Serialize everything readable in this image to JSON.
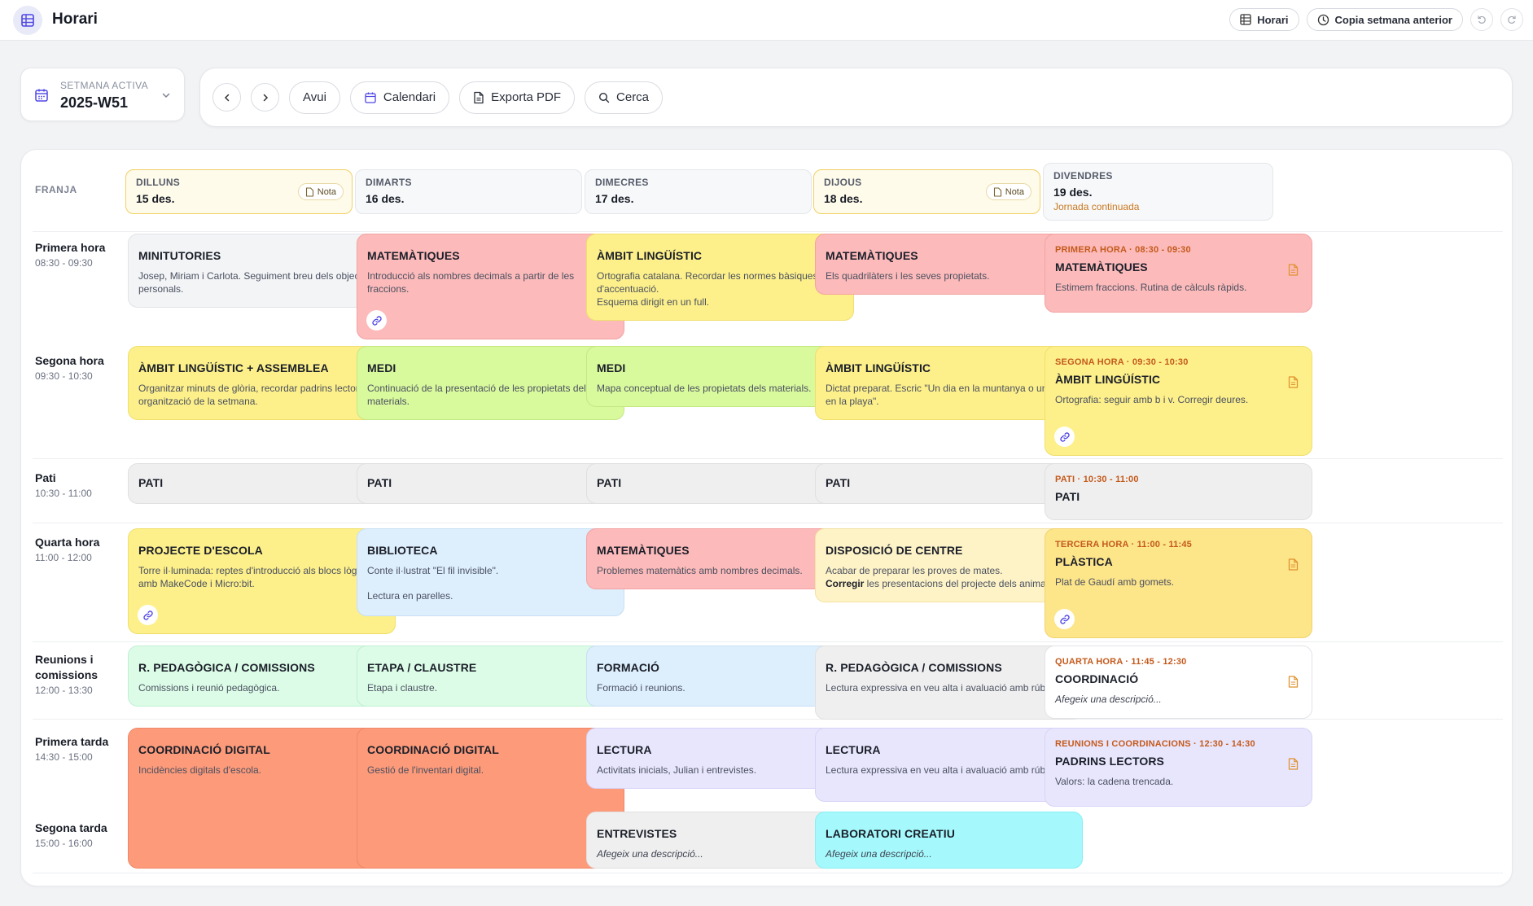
{
  "app": {
    "title": "Horari"
  },
  "top_actions": {
    "horari": "Horari",
    "copy_week": "Copia setmana anterior"
  },
  "week": {
    "label": "SETMANA ACTIVA",
    "value": "2025-W51"
  },
  "toolbar": {
    "today": "Avui",
    "calendar": "Calendari",
    "export": "Exporta PDF",
    "search": "Cerca"
  },
  "grid": {
    "franja_label": "FRANJA",
    "days": [
      {
        "name": "DILLUNS",
        "date": "15 des.",
        "note": "Nota",
        "extra": ""
      },
      {
        "name": "DIMARTS",
        "date": "16 des.",
        "note": "",
        "extra": ""
      },
      {
        "name": "DIMECRES",
        "date": "17 des.",
        "note": "",
        "extra": ""
      },
      {
        "name": "DIJOUS",
        "date": "18 des.",
        "note": "Nota",
        "extra": ""
      },
      {
        "name": "DIVENDRES",
        "date": "19 des.",
        "note": "",
        "extra": "Jornada continuada"
      }
    ],
    "slots": [
      {
        "label": "Primera hora",
        "time": "08:30 - 09:30"
      },
      {
        "label": "Segona hora",
        "time": "09:30 - 10:30"
      },
      {
        "label": "Pati",
        "time": "10:30 - 11:00"
      },
      {
        "label": "Quarta hora",
        "time": "11:00 - 12:00"
      },
      {
        "label": "Reunions i comissions",
        "time": "12:00 - 13:30"
      },
      {
        "label": "Primera tarda",
        "time": "14:30 - 15:00"
      },
      {
        "label": "Segona tarda",
        "time": "15:00 - 16:00"
      }
    ]
  },
  "cards": {
    "mon": [
      {
        "title": "MINITUTORIES",
        "desc": "Josep, Miriam i Carlota. Seguiment breu dels objectius personals."
      },
      {
        "title": "ÀMBIT LINGÜÍSTIC + ASSEMBLEA",
        "desc": "Organitzar minuts de glòria, recordar padrins lectors i organització de la setmana."
      },
      {
        "title": "PATI"
      },
      {
        "title": "PROJECTE D'ESCOLA",
        "desc": "Torre il·luminada: reptes d'introducció als blocs lògics amb MakeCode i Micro:bit."
      },
      {
        "title": "R. PEDAGÒGICA / COMISSIONS",
        "desc": "Comissions i reunió pedagògica."
      },
      {
        "title": "COORDINACIÓ DIGITAL",
        "desc": "Incidències digitals d'escola."
      }
    ],
    "tue": [
      {
        "title": "MATEMÀTIQUES",
        "desc": "Introducció als nombres decimals a partir de les fraccions."
      },
      {
        "title": "MEDI",
        "desc": "Continuació de la presentació de les propietats dels materials."
      },
      {
        "title": "PATI"
      },
      {
        "title": "BIBLIOTECA",
        "desc1": "Conte il·lustrat \"El fil invisible\".",
        "desc2": "Lectura en parelles."
      },
      {
        "title": "ETAPA / CLAUSTRE",
        "desc": "Etapa i claustre."
      },
      {
        "title": "COORDINACIÓ DIGITAL",
        "desc": "Gestió de l'inventari digital."
      }
    ],
    "wed": [
      {
        "title": "ÀMBIT LINGÜÍSTIC",
        "desc1": "Ortografia catalana. Recordar les normes bàsiques d'accentuació.",
        "desc2": "Esquema dirigit en un full."
      },
      {
        "title": "MEDI",
        "desc": "Mapa conceptual de les propietats dels materials."
      },
      {
        "title": "PATI"
      },
      {
        "title": "MATEMÀTIQUES",
        "desc": "Problemes matemàtics amb nombres decimals."
      },
      {
        "title": "FORMACIÓ",
        "desc": "Formació i reunions."
      },
      {
        "title": "LECTURA",
        "desc": "Activitats inicials, Julian i entrevistes."
      },
      {
        "title": "ENTREVISTES",
        "desc": "Afegeix una descripció..."
      }
    ],
    "thu": [
      {
        "title": "MATEMÀTIQUES",
        "desc": "Els quadrilàters i les seves propietats."
      },
      {
        "title": "ÀMBIT LINGÜÍSTIC",
        "desc": "Dictat preparat. Escric \"Un dia en la muntanya o un dia en la playa\"."
      },
      {
        "title": "PATI"
      },
      {
        "title": "DISPOSICIÓ DE CENTRE",
        "desc1": "Acabar de preparar les proves de mates.",
        "desc2_bold": "Corregir",
        "desc2_rest": " les presentacions del projecte dels animals."
      },
      {
        "title": "R. PEDAGÒGICA / COMISSIONS",
        "desc": "Lectura expressiva en veu alta i avaluació amb rúbrica."
      },
      {
        "title": "LECTURA",
        "desc": "Lectura expressiva en veu alta i avaluació amb rúbrica."
      },
      {
        "title": "LABORATORI CREATIU",
        "desc": "Afegeix una descripció..."
      }
    ],
    "fri": [
      {
        "label": "PRIMERA HORA · 08:30 - 09:30",
        "title": "MATEMÀTIQUES",
        "desc": "Estimem fraccions. Rutina de càlculs ràpids."
      },
      {
        "label": "SEGONA HORA · 09:30 - 10:30",
        "title": "ÀMBIT LINGÜÍSTIC",
        "desc": "Ortografia: seguir amb b i v. Corregir deures."
      },
      {
        "label": "PATI · 10:30 - 11:00",
        "title": "PATI"
      },
      {
        "label": "TERCERA HORA · 11:00 - 11:45",
        "title": "PLÀSTICA",
        "desc": "Plat de Gaudí amb gomets."
      },
      {
        "label": "QUARTA HORA · 11:45 - 12:30",
        "title": "COORDINACIÓ",
        "desc": "Afegeix una descripció..."
      },
      {
        "label": "REUNIONS I COORDINACIONS · 12:30 - 14:30",
        "title": "PADRINS LECTORS",
        "desc": "Valors: la cadena trencada."
      }
    ]
  },
  "colors": {
    "accent": "#4f46e5",
    "doc_icon": "#e0922f",
    "friday_label": "#c45a1c"
  },
  "icons": [
    "grid-icon",
    "clock-icon",
    "undo-icon",
    "redo-icon",
    "calendar-icon",
    "chevron-down-icon",
    "chevron-left-icon",
    "chevron-right-icon",
    "file-icon",
    "search-icon",
    "note-icon",
    "link-icon"
  ]
}
